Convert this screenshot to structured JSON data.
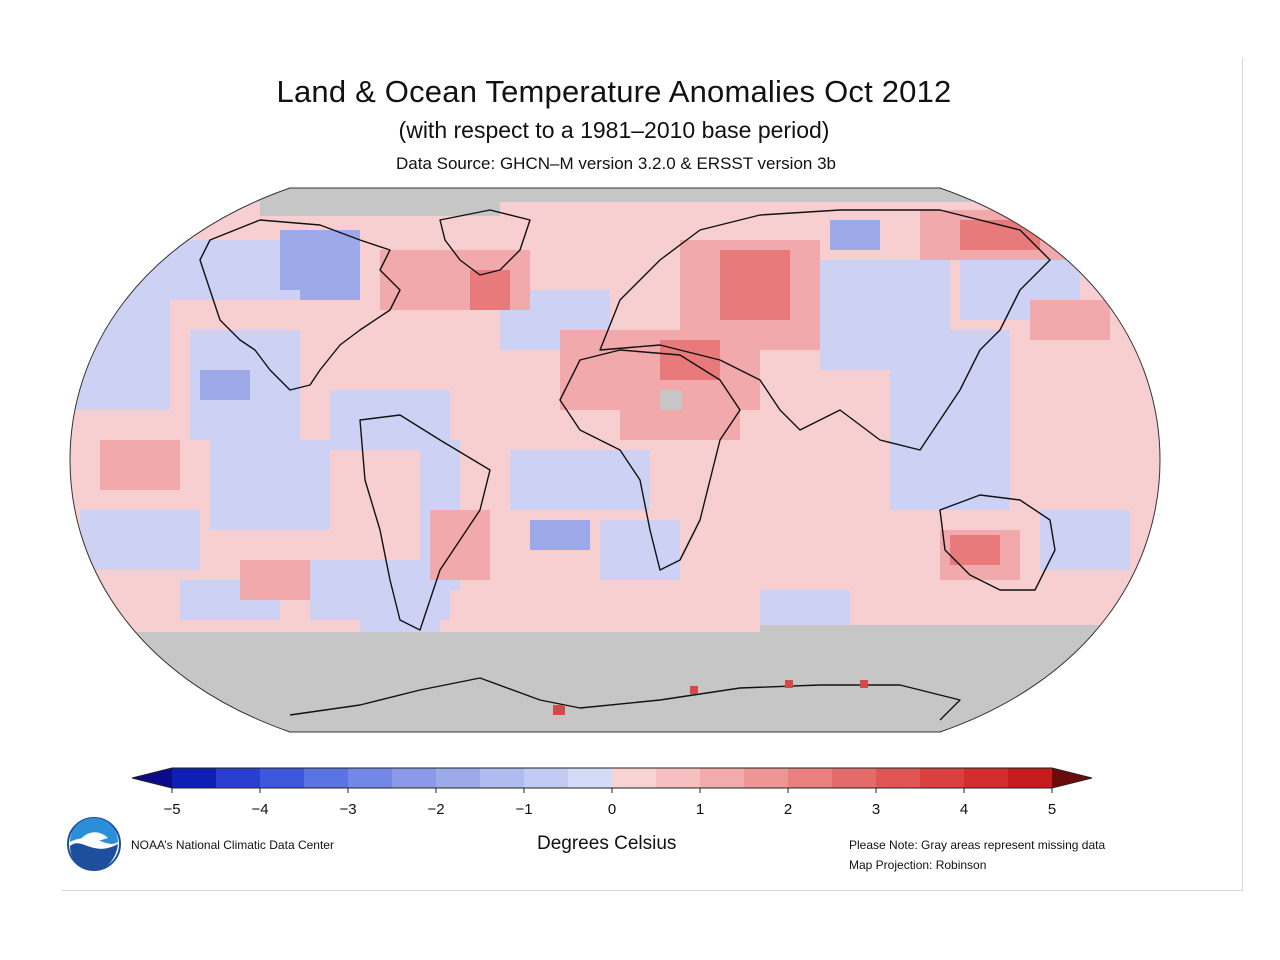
{
  "header": {
    "title": "Land & Ocean Temperature Anomalies Oct 2012",
    "subtitle": "(with respect to a 1981–2010 base period)",
    "source": "Data Source: GHCN–M version 3.2.0 & ERSST version 3b"
  },
  "colorbar": {
    "tick_labels": [
      "−5",
      "−4",
      "−3",
      "−2",
      "−1",
      "0",
      "1",
      "2",
      "3",
      "4",
      "5"
    ],
    "units": "Degrees Celsius",
    "colors": [
      "#0f1fb4",
      "#2a3fcf",
      "#3e58dc",
      "#5a74e3",
      "#7388e6",
      "#8a9ae8",
      "#9caae9",
      "#b0bbef",
      "#c2cbf3",
      "#d4dbf8",
      "#f9d3d4",
      "#f6c0c1",
      "#f2aaab",
      "#ee9596",
      "#ea8080",
      "#e56a6a",
      "#e05555",
      "#d94040",
      "#d22e2e",
      "#c41c1c"
    ],
    "under_color": "#0a0a8a",
    "over_color": "#6b0a0a"
  },
  "footer": {
    "org": "NOAA’s National Climatic Data Center",
    "note": "Please Note: Gray areas represent missing data",
    "projection": "Map Projection: Robinson"
  },
  "map": {
    "missing_color": "#c6c6c6",
    "ocean_base_color": "#f7cfd1",
    "cool_color": "#cdd2f5"
  }
}
